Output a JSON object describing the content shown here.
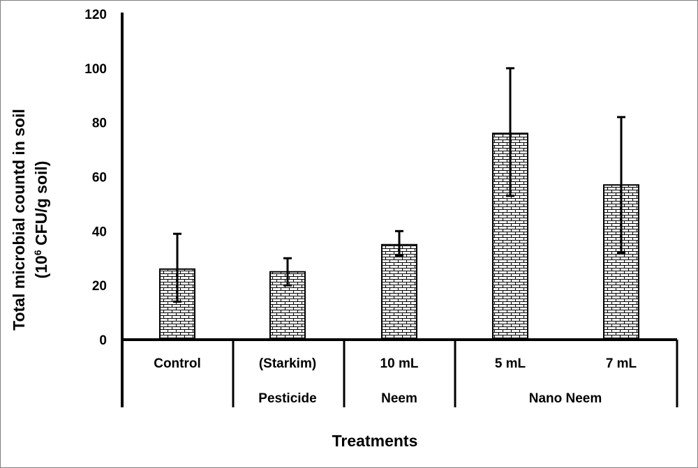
{
  "chart_data": {
    "type": "bar",
    "ylabel_line1": "Total microbial countd in soil",
    "ylabel_line2_prefix": "(10",
    "ylabel_line2_sup": "6",
    "ylabel_line2_suffix": " CFU/g soil)",
    "xlabel": "Treatments",
    "ylim": [
      0,
      120
    ],
    "yticks": [
      0,
      20,
      40,
      60,
      80,
      100,
      120
    ],
    "grid": false,
    "bar_pattern": "brick",
    "bar_color": "#000000",
    "categories": [
      {
        "top": "Control",
        "value": 26,
        "err_low": 14,
        "err_high": 39
      },
      {
        "top": "(Starkim)",
        "value": 25,
        "err_low": 20,
        "err_high": 30
      },
      {
        "top": "10 mL",
        "value": 35,
        "err_low": 31,
        "err_high": 40
      },
      {
        "top": "5 mL",
        "value": 76,
        "err_low": 53,
        "err_high": 100
      },
      {
        "top": "7 mL",
        "value": 57,
        "err_low": 32,
        "err_high": 82
      }
    ],
    "group_labels": [
      "Pesticide",
      "Neem",
      "Nano Neem"
    ]
  }
}
